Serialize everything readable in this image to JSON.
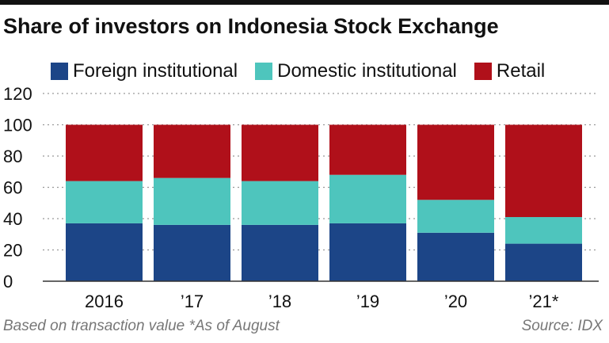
{
  "title": "Share of investors on Indonesia Stock Exchange",
  "footer": {
    "note": "Based on transaction value  *As of August",
    "source": "Source: IDX"
  },
  "colors": {
    "foreign": "#1c4587",
    "domestic": "#4ec5bd",
    "retail": "#b0101a",
    "grid": "#999999"
  },
  "chart_data": {
    "type": "bar",
    "stacked": true,
    "categories": [
      "2016",
      "’17",
      "’18",
      "’19",
      "’20",
      "’21*"
    ],
    "series": [
      {
        "name": "Foreign institutional",
        "values": [
          37,
          36,
          36,
          37,
          31,
          24
        ]
      },
      {
        "name": "Domestic institutional",
        "values": [
          27,
          30,
          28,
          31,
          21,
          17
        ]
      },
      {
        "name": "Retail",
        "values": [
          36,
          34,
          36,
          32,
          48,
          59
        ]
      }
    ],
    "ylim": [
      0,
      120
    ],
    "yticks": [
      0,
      20,
      40,
      60,
      80,
      100,
      120
    ],
    "grid": true,
    "legend": "top"
  }
}
